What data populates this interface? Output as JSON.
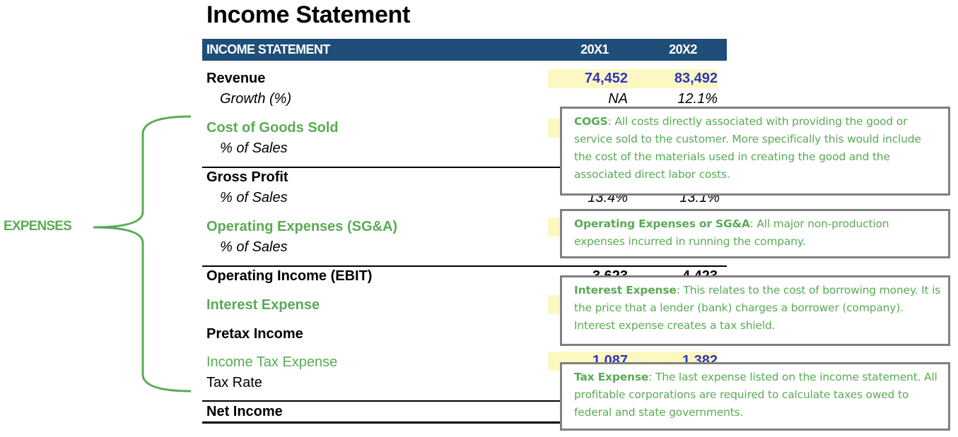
{
  "title": "Income Statement",
  "header": {
    "label": "INCOME STATEMENT",
    "col1": "20X1",
    "col2": "20X2",
    "color": "#1f4e79"
  },
  "rows": {
    "revenue": {
      "label": "Revenue",
      "v1": "74,452",
      "v2": "83,492"
    },
    "growth": {
      "label": "Growth (%)",
      "v1": "NA",
      "v2": "12.1%"
    },
    "cogs": {
      "label": "Cost of Goods Sold",
      "pct_label": "% of Sales"
    },
    "gross_profit": {
      "label": "Gross Profit",
      "pct_label": "% of Sales",
      "pct1": "13.4%",
      "pct2": "13.1%"
    },
    "opex": {
      "label": "Operating Expenses (SG&A)",
      "pct_label": "% of Sales"
    },
    "ebit": {
      "label": "Operating Income (EBIT)",
      "v1": "3,623",
      "v2": "4,423"
    },
    "interest": {
      "label": "Interest Expense"
    },
    "pretax": {
      "label": "Pretax Income"
    },
    "tax": {
      "label": "Income Tax Expense",
      "v1": "1,087",
      "v2": "1,382"
    },
    "tax_rate": {
      "label": "Tax Rate"
    },
    "net_income": {
      "label": "Net Income"
    }
  },
  "expenses_label": "EXPENSES",
  "callouts": {
    "cogs": {
      "term": "COGS",
      "text": ": All costs directly associated with providing the good or service sold to the customer. More specifically this would include the cost of the materials used in creating the good and the associated direct labor costs."
    },
    "opex": {
      "term": "Operating Expenses or SG&A",
      "text": ": All major non-production expenses incurred in running the company."
    },
    "interest": {
      "term": "Interest Expense",
      "text": ": This relates to the cost of borrowing money. It is the price that a lender (bank) charges a borrower (company). Interest expense creates a tax shield."
    },
    "tax": {
      "term": "Tax Expense",
      "text": ": The last expense listed on the income statement. All profitable corporations are required to calculate taxes owed to federal and state governments."
    }
  },
  "colors": {
    "green": "#5aab55",
    "blue": "#2e35c4",
    "input_fill": "#fdf8c2",
    "callout_border": "#808080"
  }
}
